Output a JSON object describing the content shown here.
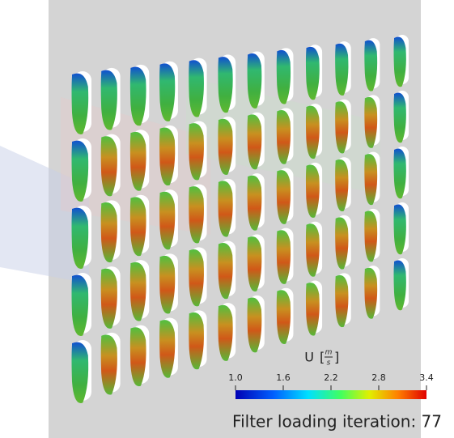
{
  "colorbar": {
    "title": "U",
    "unit_numerator": "m",
    "unit_denominator": "s",
    "range": [
      1.0,
      3.4
    ],
    "ticks": [
      {
        "value": 1.0,
        "label": "1.0"
      },
      {
        "value": 1.6,
        "label": "1.6"
      },
      {
        "value": 2.2,
        "label": "2.2"
      },
      {
        "value": 2.8,
        "label": "2.8"
      },
      {
        "value": 3.4,
        "label": "3.4"
      }
    ]
  },
  "caption": "Filter loading iteration: 77"
}
